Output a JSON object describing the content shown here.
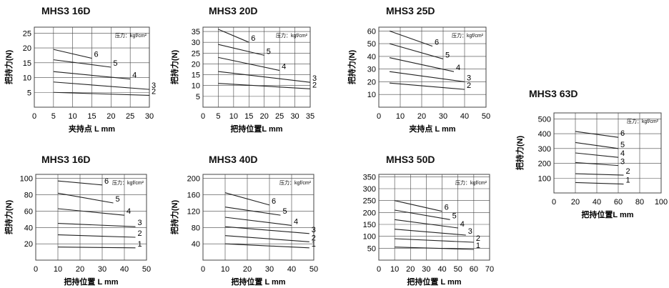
{
  "colors": {
    "line": "#222222",
    "grid": "#444444",
    "background": "#ffffff"
  },
  "chart_data": [
    {
      "type": "line",
      "title": "MHS3 16D",
      "xlabel": "夹持点 L mm",
      "ylabel": "把持力(N)",
      "xlim": [
        0,
        30
      ],
      "ylim": [
        0,
        27
      ],
      "xticks": [
        "0",
        "5",
        "10",
        "15",
        "20",
        "25",
        "30"
      ],
      "yticks": [
        "5",
        "10",
        "15",
        "20",
        "25"
      ],
      "grid": true,
      "note": "压力：kgf/cm²",
      "series": [
        {
          "name": "6",
          "x": [
            5,
            15
          ],
          "y": [
            19.5,
            16.5
          ]
        },
        {
          "name": "5",
          "x": [
            5,
            20
          ],
          "y": [
            16,
            13.5
          ]
        },
        {
          "name": "4",
          "x": [
            5,
            25
          ],
          "y": [
            12,
            9.5
          ]
        },
        {
          "name": "3",
          "x": [
            5,
            30
          ],
          "y": [
            8.5,
            6
          ]
        },
        {
          "name": "2",
          "x": [
            5,
            30
          ],
          "y": [
            5,
            4
          ]
        }
      ]
    },
    {
      "type": "line",
      "title": "MHS3 20D",
      "xlabel": "把持位置L mm",
      "ylabel": "把持力(N)",
      "xlim": [
        0,
        35
      ],
      "ylim": [
        0,
        37
      ],
      "xticks": [
        "0",
        "5",
        "10",
        "15",
        "20",
        "25",
        "30",
        "35"
      ],
      "yticks": [
        "5",
        "10",
        "15",
        "20",
        "25",
        "30",
        "35"
      ],
      "grid": true,
      "note": "压力：kgf/cm²",
      "series": [
        {
          "name": "6",
          "x": [
            5,
            15
          ],
          "y": [
            36,
            30
          ]
        },
        {
          "name": "5",
          "x": [
            5,
            20
          ],
          "y": [
            29,
            24
          ]
        },
        {
          "name": "4",
          "x": [
            5,
            25
          ],
          "y": [
            23,
            17
          ]
        },
        {
          "name": "3",
          "x": [
            5,
            35
          ],
          "y": [
            16.5,
            11.5
          ]
        },
        {
          "name": "2",
          "x": [
            5,
            35
          ],
          "y": [
            11,
            8.5
          ]
        }
      ]
    },
    {
      "type": "line",
      "title": "MHS3 25D",
      "xlabel": "夹持点 L mm",
      "ylabel": "把持力(N)",
      "xlim": [
        0,
        50
      ],
      "ylim": [
        0,
        63
      ],
      "xticks": [
        "0",
        "10",
        "20",
        "30",
        "40",
        "50"
      ],
      "yticks": [
        "10",
        "20",
        "30",
        "40",
        "50",
        "60"
      ],
      "grid": true,
      "note": "压力：kgf/cm²",
      "series": [
        {
          "name": "6",
          "x": [
            5,
            25
          ],
          "y": [
            60,
            48
          ]
        },
        {
          "name": "5",
          "x": [
            5,
            30
          ],
          "y": [
            50,
            38
          ]
        },
        {
          "name": "4",
          "x": [
            5,
            35
          ],
          "y": [
            39,
            28
          ]
        },
        {
          "name": "3",
          "x": [
            5,
            40
          ],
          "y": [
            28,
            20
          ]
        },
        {
          "name": "2",
          "x": [
            5,
            40
          ],
          "y": [
            19,
            14
          ]
        }
      ]
    },
    {
      "type": "line",
      "title": "MHS3 63D",
      "xlabel": "把持位置L mm",
      "ylabel": "把持力(N)",
      "xlim": [
        0,
        100
      ],
      "ylim": [
        0,
        540
      ],
      "xticks": [
        "0",
        "20",
        "40",
        "60",
        "80",
        "100"
      ],
      "yticks": [
        "100",
        "200",
        "300",
        "400",
        "500"
      ],
      "grid": true,
      "note": "压力：kgf/cm²",
      "series": [
        {
          "name": "6",
          "x": [
            20,
            60
          ],
          "y": [
            415,
            375
          ]
        },
        {
          "name": "5",
          "x": [
            20,
            60
          ],
          "y": [
            340,
            300
          ]
        },
        {
          "name": "4",
          "x": [
            20,
            60
          ],
          "y": [
            270,
            240
          ]
        },
        {
          "name": "3",
          "x": [
            20,
            60
          ],
          "y": [
            205,
            185
          ]
        },
        {
          "name": "2",
          "x": [
            20,
            65
          ],
          "y": [
            130,
            120
          ]
        },
        {
          "name": "1",
          "x": [
            20,
            65
          ],
          "y": [
            70,
            60
          ]
        }
      ]
    },
    {
      "type": "line",
      "title": "MHS3 16D",
      "xlabel": "把持位置 L mm",
      "ylabel": "把持力(N)",
      "xlim": [
        0,
        50
      ],
      "ylim": [
        0,
        105
      ],
      "xticks": [
        "0",
        "10",
        "20",
        "30",
        "40",
        "50"
      ],
      "yticks": [
        "20",
        "40",
        "60",
        "80",
        "100"
      ],
      "grid": true,
      "note": "压力：kgf/cm²",
      "series": [
        {
          "name": "6",
          "x": [
            10,
            30
          ],
          "y": [
            97,
            92
          ]
        },
        {
          "name": "5",
          "x": [
            10,
            35
          ],
          "y": [
            82,
            70
          ]
        },
        {
          "name": "4",
          "x": [
            10,
            40
          ],
          "y": [
            63,
            55
          ]
        },
        {
          "name": "3",
          "x": [
            10,
            45
          ],
          "y": [
            45,
            41
          ]
        },
        {
          "name": "2",
          "x": [
            10,
            45
          ],
          "y": [
            31,
            28
          ]
        },
        {
          "name": "1",
          "x": [
            10,
            45
          ],
          "y": [
            16,
            15
          ]
        }
      ]
    },
    {
      "type": "line",
      "title": "MHS3 40D",
      "xlabel": "把持位置 L mm",
      "ylabel": "把持力(N)",
      "xlim": [
        0,
        50
      ],
      "ylim": [
        0,
        210
      ],
      "xticks": [
        "0",
        "10",
        "20",
        "30",
        "40",
        "50"
      ],
      "yticks": [
        "40",
        "80",
        "120",
        "160",
        "200"
      ],
      "grid": true,
      "note": "压力：kgf/cm²",
      "series": [
        {
          "name": "6",
          "x": [
            10,
            30
          ],
          "y": [
            165,
            135
          ]
        },
        {
          "name": "5",
          "x": [
            10,
            35
          ],
          "y": [
            130,
            110
          ]
        },
        {
          "name": "4",
          "x": [
            10,
            40
          ],
          "y": [
            105,
            85
          ]
        },
        {
          "name": "3",
          "x": [
            10,
            48
          ],
          "y": [
            82,
            65
          ]
        },
        {
          "name": "2",
          "x": [
            10,
            48
          ],
          "y": [
            60,
            45
          ]
        },
        {
          "name": "1",
          "x": [
            10,
            48
          ],
          "y": [
            40,
            30
          ]
        }
      ]
    },
    {
      "type": "line",
      "title": "MHS3 50D",
      "xlabel": "把持位置 L mm",
      "ylabel": "",
      "xlim": [
        0,
        70
      ],
      "ylim": [
        0,
        360
      ],
      "xticks": [
        "0",
        "10",
        "20",
        "30",
        "40",
        "50",
        "60",
        "70"
      ],
      "yticks": [
        "50",
        "100",
        "150",
        "200",
        "250",
        "300",
        "350"
      ],
      "grid": true,
      "note": "压力：kgf/cm²",
      "series": [
        {
          "name": "6",
          "x": [
            10,
            40
          ],
          "y": [
            250,
            205
          ]
        },
        {
          "name": "5",
          "x": [
            10,
            45
          ],
          "y": [
            210,
            170
          ]
        },
        {
          "name": "4",
          "x": [
            10,
            50
          ],
          "y": [
            170,
            135
          ]
        },
        {
          "name": "3",
          "x": [
            10,
            55
          ],
          "y": [
            130,
            105
          ]
        },
        {
          "name": "2",
          "x": [
            10,
            60
          ],
          "y": [
            90,
            75
          ]
        },
        {
          "name": "1",
          "x": [
            10,
            60
          ],
          "y": [
            55,
            45
          ]
        }
      ]
    }
  ]
}
